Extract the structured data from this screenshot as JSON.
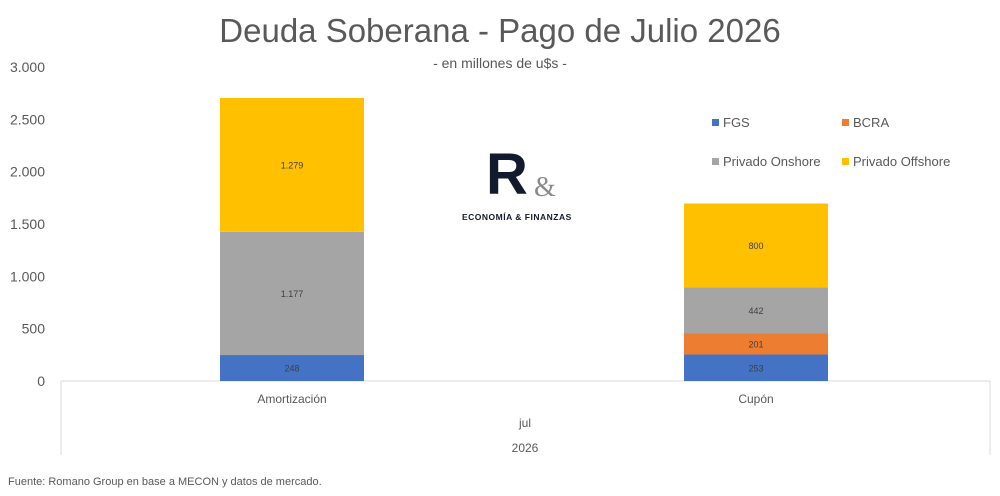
{
  "chart_data": {
    "type": "bar",
    "stacked": true,
    "title": "Deuda Soberana - Pago de Julio 2026",
    "subtitle": "- en millones de u$s -",
    "categories": [
      "Amortización",
      "Cupón"
    ],
    "x_group_labels": [
      "jul",
      "2026"
    ],
    "series": [
      {
        "name": "FGS",
        "color": "#4472c4",
        "values": [
          248,
          253
        ],
        "labels": [
          "248",
          "253"
        ]
      },
      {
        "name": "BCRA",
        "color": "#ed7d31",
        "values": [
          0,
          201
        ],
        "labels": [
          "",
          "201"
        ]
      },
      {
        "name": "Privado Onshore",
        "color": "#a5a5a5",
        "values": [
          1177,
          442
        ],
        "labels": [
          "1.177",
          "442"
        ]
      },
      {
        "name": "Privado Offshore",
        "color": "#ffc000",
        "values": [
          1279,
          800
        ],
        "labels": [
          "1.279",
          "800"
        ]
      }
    ],
    "ylim": [
      0,
      3000
    ],
    "yticks": [
      0,
      500,
      1000,
      1500,
      2000,
      2500,
      3000
    ],
    "ytick_labels": [
      "0",
      "500",
      "1.000",
      "1.500",
      "2.000",
      "2.500",
      "3.000"
    ],
    "grid": false,
    "legend_position": "top-right",
    "xlabel": "",
    "ylabel": ""
  },
  "logo": {
    "mark": "R&",
    "tagline": "ECONOMÍA & FINANZAS"
  },
  "source": "Fuente: Romano Group en base a MECON y datos de mercado."
}
